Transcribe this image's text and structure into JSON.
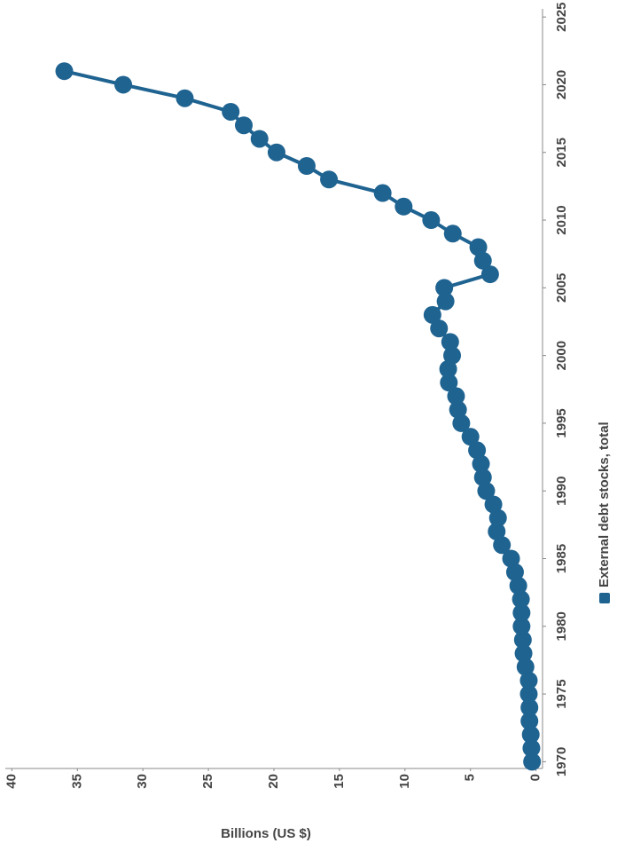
{
  "chart_data": {
    "type": "line",
    "y_label": "Billions (US $)",
    "x": [
      1970,
      1971,
      1972,
      1973,
      1974,
      1975,
      1976,
      1977,
      1978,
      1979,
      1980,
      1981,
      1982,
      1983,
      1984,
      1985,
      1986,
      1987,
      1988,
      1989,
      1990,
      1991,
      1992,
      1993,
      1994,
      1995,
      1996,
      1997,
      1998,
      1999,
      2000,
      2001,
      2002,
      2003,
      2004,
      2005,
      2006,
      2007,
      2008,
      2009,
      2010,
      2011,
      2012,
      2013,
      2014,
      2015,
      2016,
      2017,
      2018,
      2019,
      2020,
      2021
    ],
    "series": [
      {
        "name": "External debt stocks, total",
        "color": "#1f6391",
        "values": [
          0.3,
          0.35,
          0.4,
          0.5,
          0.5,
          0.55,
          0.55,
          0.8,
          0.95,
          1.0,
          1.1,
          1.1,
          1.15,
          1.35,
          1.6,
          1.9,
          2.6,
          3.0,
          2.9,
          3.25,
          3.8,
          4.05,
          4.2,
          4.5,
          5.0,
          5.7,
          5.95,
          6.1,
          6.65,
          6.7,
          6.4,
          6.55,
          7.4,
          7.9,
          6.9,
          7.0,
          3.5,
          4.05,
          4.4,
          6.35,
          8.0,
          10.1,
          11.7,
          15.8,
          17.5,
          19.8,
          21.1,
          22.3,
          23.3,
          26.8,
          31.5,
          36.0
        ]
      }
    ],
    "xlim": [
      1969.5,
      2025.6
    ],
    "xticks": [
      1970,
      1975,
      1980,
      1985,
      1990,
      1995,
      2000,
      2005,
      2010,
      2015,
      2020,
      2025
    ],
    "ylim": [
      -0.5,
      40.5
    ],
    "yticks": [
      0,
      5,
      10,
      15,
      20,
      25,
      30,
      35,
      40
    ],
    "grid": false,
    "legend": "bottom"
  }
}
